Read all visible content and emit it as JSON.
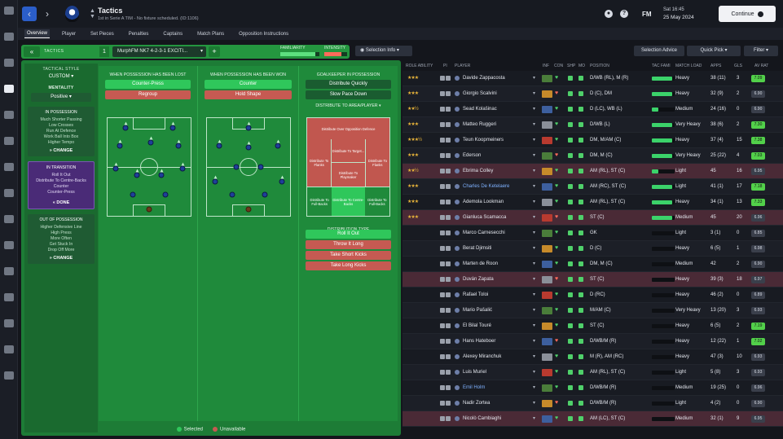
{
  "rail": {
    "icons": [
      "home-icon",
      "inbox-icon",
      "squad-icon",
      "tactics-icon",
      "team-report-icon",
      "training-icon",
      "schedule-icon",
      "staff-icon",
      "medical-icon",
      "competitions-icon",
      "scouting-icon",
      "club-icon",
      "finances-icon",
      "development-icon",
      "settings-icon"
    ]
  },
  "header": {
    "title": "Tactics",
    "subtitle": "1st in Serie A TIM - No fixture scheduled. (ID:1106)",
    "fm_logo": "FM",
    "date_day": "Sat 16:45",
    "date_full": "25 May 2024",
    "continue_label": "Continue",
    "icons": [
      "soccer-icon",
      "help-icon"
    ]
  },
  "subnav": [
    "Overview",
    "Player",
    "Set Pieces",
    "Penalties",
    "Captains",
    "Match Plans",
    "Opposition Instructions"
  ],
  "tactic_bar": {
    "tactics_label": "TACTICS",
    "number": "1",
    "tactic_name": "MurphFM NK7 4-2-3-1 EXCITI...",
    "familiarity_label": "FAMILIARITY",
    "intensity_label": "INTENSITY",
    "familiarity_level": 0.9,
    "intensity_level": 0.75
  },
  "style_col": {
    "style_head": "TACTICAL STYLE",
    "style_value": "CUSTOM",
    "mentality_head": "MENTALITY",
    "mentality_value": "Positive",
    "in_possession": {
      "title": "IN POSSESSION",
      "items": [
        "Much Shorter Passing",
        "Low Crosses",
        "Run At Defence",
        "Work Ball Into Box",
        "Higher Tempo"
      ],
      "btn": "CHANGE"
    },
    "in_transition": {
      "title": "IN TRANSITION",
      "items": [
        "Roll It Out",
        "Distribute To Centre-Backs",
        "Counter",
        "Counter-Press"
      ],
      "btn": "DONE"
    },
    "out_of_possession": {
      "title": "OUT OF POSSESSION",
      "items": [
        "Higher Defensive Line",
        "High Press",
        "More Often",
        "Get Stuck In",
        "Drop Off More"
      ],
      "btn": "CHANGE"
    }
  },
  "lost": {
    "head": "WHEN POSSESSION HAS BEEN LOST",
    "opt1": "Counter-Press",
    "opt2": "Regroup"
  },
  "won": {
    "head": "WHEN POSSESSION HAS BEEN WON",
    "opt1": "Counter",
    "opt2": "Hold Shape"
  },
  "gk": {
    "head": "GOALKEEPER IN POSSESSION",
    "opt1": "Distribute Quickly",
    "opt2": "Slow Pace Down",
    "area_head": "DISTRIBUTE TO AREA/PLAYER",
    "zone_over": "Distribute Over Opposition Defence",
    "zone_target": "Distribute To Target...",
    "zone_flanks_l": "Distribute To Flanks",
    "zone_playmaker": "Distribute To Playmaker",
    "zone_flanks_r": "Distribute To Flanks",
    "zone_fb_l": "Distribute To Full-Backs",
    "zone_cb": "Distribute To Centre-Backs",
    "zone_fb_r": "Distribute To Full-Backs",
    "type_head": "DISTRIBUTION TYPE",
    "types": [
      "Roll It Out",
      "Throw It Long",
      "Take Short Kicks",
      "Take Long Kicks"
    ]
  },
  "legend": {
    "selected": "Selected",
    "unavailable": "Unavailable"
  },
  "squad_toolbar": {
    "selection_info": "Selection Info",
    "selection_advice": "Selection Advice",
    "quick_pick": "Quick Pick",
    "filter": "Filter"
  },
  "columns": {
    "role_ability": "ROLE ABILITY",
    "pi": "PI",
    "player": "PLAYER",
    "inf": "INF",
    "con": "CON",
    "shp": "SHP",
    "mo": "MO",
    "position": "POSITION",
    "tac_fam": "TAC FAMI",
    "match_load": "MATCH LOAD",
    "apps": "APPS",
    "gls": "GLS",
    "av_rat": "AV RAT"
  },
  "colors": {
    "accent_green": "#2fc75b",
    "unavailable_red": "#c65a52",
    "transition_purple": "#4a2b77",
    "rating_green": "#52d04a",
    "rating_grey": "#3a3f4b"
  },
  "players": [
    {
      "stars": "★★★",
      "name": "Davide Zappacosta",
      "pos": "D/WB (RL), M (R)",
      "load": "Heavy",
      "apps": "38 (11)",
      "gls": "3",
      "rat": "7.09",
      "fam": 0.9,
      "hl": false,
      "link": false,
      "rat_hi": true
    },
    {
      "stars": "★★★",
      "name": "Giorgio Scalvini",
      "pos": "D (C), DM",
      "load": "Heavy",
      "apps": "32 (9)",
      "gls": "2",
      "rat": "6.90",
      "fam": 0.9,
      "hl": false,
      "link": false,
      "rat_hi": false
    },
    {
      "stars": "★★½",
      "name": "Sead Kolašinac",
      "pos": "D (LC), WB (L)",
      "load": "Medium",
      "apps": "24 (16)",
      "gls": "0",
      "rat": "6.90",
      "fam": 0.3,
      "hl": false,
      "link": false,
      "rat_hi": false
    },
    {
      "stars": "★★★",
      "name": "Matteo Ruggeri",
      "pos": "D/WB (L)",
      "load": "Very Heavy",
      "apps": "38 (6)",
      "gls": "2",
      "rat": "7.30",
      "fam": 0.9,
      "hl": false,
      "link": false,
      "rat_hi": true
    },
    {
      "stars": "★★★½",
      "name": "Teun Koopmeiners",
      "pos": "DM, M/AM (C)",
      "load": "Heavy",
      "apps": "37 (4)",
      "gls": "15",
      "rat": "7.38",
      "fam": 0.9,
      "hl": false,
      "link": false,
      "rat_hi": true
    },
    {
      "stars": "★★★",
      "name": "Ederson",
      "pos": "DM, M (C)",
      "load": "Very Heavy",
      "apps": "25 (22)",
      "gls": "4",
      "rat": "7.03",
      "fam": 0.9,
      "hl": false,
      "link": false,
      "rat_hi": true
    },
    {
      "stars": "★★½",
      "name": "Ebrima Colley",
      "pos": "AM (RL), ST (C)",
      "load": "Light",
      "apps": "45",
      "gls": "16",
      "rat": "6.95",
      "fam": 0.3,
      "hl": true,
      "link": false,
      "rat_hi": false
    },
    {
      "stars": "★★★",
      "name": "Charles De Ketelaere",
      "pos": "AM (RC), ST (C)",
      "load": "Light",
      "apps": "41 (1)",
      "gls": "17",
      "rat": "7.18",
      "fam": 0.9,
      "hl": false,
      "link": true,
      "rat_hi": true
    },
    {
      "stars": "★★★",
      "name": "Ademola Lookman",
      "pos": "AM (RL), ST (C)",
      "load": "Heavy",
      "apps": "34 (1)",
      "gls": "13",
      "rat": "7.33",
      "fam": 0.9,
      "hl": false,
      "link": false,
      "rat_hi": true
    },
    {
      "stars": "★★★",
      "name": "Gianluca Scamacca",
      "pos": "ST (C)",
      "load": "Medium",
      "apps": "45",
      "gls": "20",
      "rat": "6.96",
      "fam": 0.9,
      "hl": true,
      "link": false,
      "rat_hi": false
    },
    {
      "stars": "",
      "name": "Marco Carnesecchi",
      "pos": "GK",
      "load": "Light",
      "apps": "3 (1)",
      "gls": "0",
      "rat": "6.85",
      "fam": 0.0,
      "hl": false,
      "link": false,
      "rat_hi": false
    },
    {
      "stars": "",
      "name": "Berat Djimsiti",
      "pos": "D (C)",
      "load": "Heavy",
      "apps": "6 (5)",
      "gls": "1",
      "rat": "6.98",
      "fam": 0.0,
      "hl": false,
      "link": false,
      "rat_hi": false
    },
    {
      "stars": "",
      "name": "Marten de Roon",
      "pos": "DM, M (C)",
      "load": "Medium",
      "apps": "42",
      "gls": "2",
      "rat": "6.90",
      "fam": 0.0,
      "hl": false,
      "link": false,
      "rat_hi": false
    },
    {
      "stars": "",
      "name": "Duván Zapata",
      "pos": "ST (C)",
      "load": "Heavy",
      "apps": "39 (3)",
      "gls": "18",
      "rat": "6.97",
      "fam": 0.0,
      "hl": true,
      "link": false,
      "rat_hi": false
    },
    {
      "stars": "",
      "name": "Rafael Toloi",
      "pos": "D (RC)",
      "load": "Heavy",
      "apps": "46 (2)",
      "gls": "0",
      "rat": "6.89",
      "fam": 0.0,
      "hl": false,
      "link": false,
      "rat_hi": false
    },
    {
      "stars": "",
      "name": "Mario Pašalić",
      "pos": "M/AM (C)",
      "load": "Very Heavy",
      "apps": "13 (20)",
      "gls": "3",
      "rat": "6.93",
      "fam": 0.0,
      "hl": false,
      "link": false,
      "rat_hi": false
    },
    {
      "stars": "",
      "name": "El Bilal Touré",
      "pos": "ST (C)",
      "load": "Heavy",
      "apps": "6 (5)",
      "gls": "2",
      "rat": "7.19",
      "fam": 0.0,
      "hl": false,
      "link": false,
      "rat_hi": true
    },
    {
      "stars": "",
      "name": "Hans Hateboer",
      "pos": "D/WB/M (R)",
      "load": "Heavy",
      "apps": "12 (22)",
      "gls": "1",
      "rat": "7.02",
      "fam": 0.0,
      "hl": false,
      "link": false,
      "rat_hi": true
    },
    {
      "stars": "",
      "name": "Alexey Miranchuk",
      "pos": "M (R), AM (RC)",
      "load": "Heavy",
      "apps": "47 (3)",
      "gls": "10",
      "rat": "6.93",
      "fam": 0.0,
      "hl": false,
      "link": false,
      "rat_hi": false
    },
    {
      "stars": "",
      "name": "Luis Muriel",
      "pos": "AM (RL), ST (C)",
      "load": "Light",
      "apps": "5 (8)",
      "gls": "3",
      "rat": "6.93",
      "fam": 0.0,
      "hl": false,
      "link": false,
      "rat_hi": false
    },
    {
      "stars": "",
      "name": "Emil Holm",
      "pos": "D/WB/M (R)",
      "load": "Medium",
      "apps": "19 (25)",
      "gls": "0",
      "rat": "6.96",
      "fam": 0.0,
      "hl": false,
      "link": true,
      "rat_hi": false
    },
    {
      "stars": "",
      "name": "Nadir Zortea",
      "pos": "D/WB/M (R)",
      "load": "Light",
      "apps": "4 (2)",
      "gls": "0",
      "rat": "6.90",
      "fam": 0.0,
      "hl": false,
      "link": false,
      "rat_hi": false
    },
    {
      "stars": "",
      "name": "Nicolò Cambiaghi",
      "pos": "AM (LC), ST (C)",
      "load": "Medium",
      "apps": "32 (1)",
      "gls": "9",
      "rat": "6.95",
      "fam": 0.0,
      "hl": true,
      "link": false,
      "rat_hi": false
    }
  ]
}
